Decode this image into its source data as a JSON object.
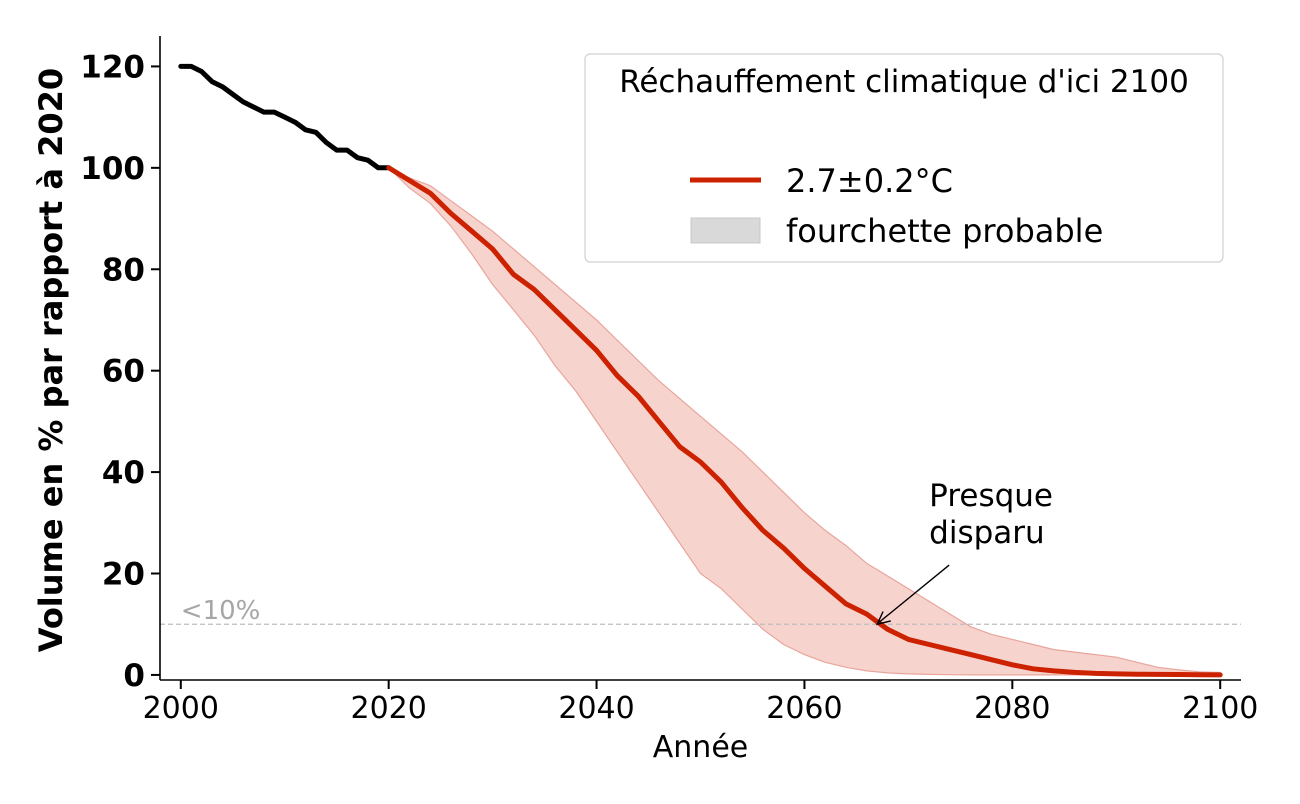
{
  "chart_data": {
    "type": "line",
    "title": "",
    "xlabel": "Année",
    "ylabel": "Volume en % par rapport à 2020",
    "xlim": [
      1998,
      2102
    ],
    "ylim": [
      -1,
      126
    ],
    "xticks": [
      2000,
      2020,
      2040,
      2060,
      2080,
      2100
    ],
    "yticks": [
      0,
      20,
      40,
      60,
      80,
      100,
      120
    ],
    "colors": {
      "historical": "#000000",
      "projection": "#cc2200",
      "band_fill": "#f2b6ae",
      "band_edge": "#e8a59c",
      "reference": "#bdbdbd",
      "legend_patch": "#d9d9d9"
    },
    "historical": {
      "x": [
        2000,
        2001,
        2002,
        2003,
        2004,
        2005,
        2006,
        2007,
        2008,
        2009,
        2010,
        2011,
        2012,
        2013,
        2014,
        2015,
        2016,
        2017,
        2018,
        2019,
        2020
      ],
      "y": [
        120,
        120,
        119,
        117,
        116,
        114.5,
        113,
        112,
        111,
        111,
        110,
        109,
        107.5,
        107,
        105,
        103.5,
        103.5,
        102,
        101.5,
        100,
        100
      ]
    },
    "projection": {
      "name": "2.7±0.2°C",
      "x": [
        2020,
        2022,
        2024,
        2026,
        2028,
        2030,
        2032,
        2034,
        2036,
        2038,
        2040,
        2042,
        2044,
        2046,
        2048,
        2050,
        2052,
        2054,
        2056,
        2058,
        2060,
        2062,
        2064,
        2066,
        2068,
        2070,
        2072,
        2074,
        2076,
        2078,
        2080,
        2082,
        2084,
        2086,
        2088,
        2090,
        2092,
        2094,
        2096,
        2098,
        2100
      ],
      "y": [
        100,
        97.5,
        95,
        91,
        87.5,
        84,
        79,
        76,
        72,
        68,
        64,
        59,
        55,
        50,
        45,
        42,
        38,
        33,
        28.5,
        25,
        21,
        17.5,
        14,
        12,
        9,
        7,
        6,
        5,
        4,
        3,
        2,
        1.2,
        0.8,
        0.5,
        0.3,
        0.2,
        0.15,
        0.1,
        0.08,
        0.05,
        0
      ]
    },
    "band": {
      "name": "fourchette probable",
      "x": [
        2020,
        2022,
        2024,
        2026,
        2028,
        2030,
        2032,
        2034,
        2036,
        2038,
        2040,
        2042,
        2044,
        2046,
        2048,
        2050,
        2052,
        2054,
        2056,
        2058,
        2060,
        2062,
        2064,
        2066,
        2068,
        2070,
        2072,
        2074,
        2076,
        2078,
        2080,
        2082,
        2084,
        2086,
        2088,
        2090,
        2092,
        2094,
        2096,
        2098,
        2100
      ],
      "upper": [
        100,
        98,
        96.5,
        93.5,
        90.5,
        87.5,
        84,
        80.5,
        77,
        73.5,
        70,
        66,
        62,
        58,
        54.5,
        51,
        47.5,
        44,
        40,
        36,
        32,
        28.5,
        25.5,
        22,
        19.5,
        17,
        14.5,
        12,
        9.5,
        8,
        7,
        6,
        5,
        4.5,
        4,
        3.5,
        2.5,
        1.5,
        1,
        0.6,
        0.5
      ],
      "lower": [
        100,
        96,
        93,
        88.5,
        83,
        77,
        72,
        67,
        61,
        56,
        50,
        44,
        38,
        32,
        26,
        20,
        17,
        13,
        9,
        6,
        4,
        2.5,
        1.5,
        0.8,
        0.4,
        0.2,
        0.1,
        0.05,
        0,
        0,
        0,
        0,
        0,
        0,
        0,
        0,
        0,
        0,
        0,
        0,
        0
      ]
    },
    "reference_line": {
      "y": 10,
      "label": "<10%"
    },
    "annotation": {
      "lines": [
        "Presque",
        "disparu"
      ],
      "point": [
        2067,
        10
      ],
      "text_at": [
        2072,
        26
      ]
    },
    "legend": {
      "title": "Réchauffement climatique d'ici 2100",
      "entries": [
        "2.7±0.2°C",
        "fourchette probable"
      ],
      "placement": "top-right"
    }
  }
}
